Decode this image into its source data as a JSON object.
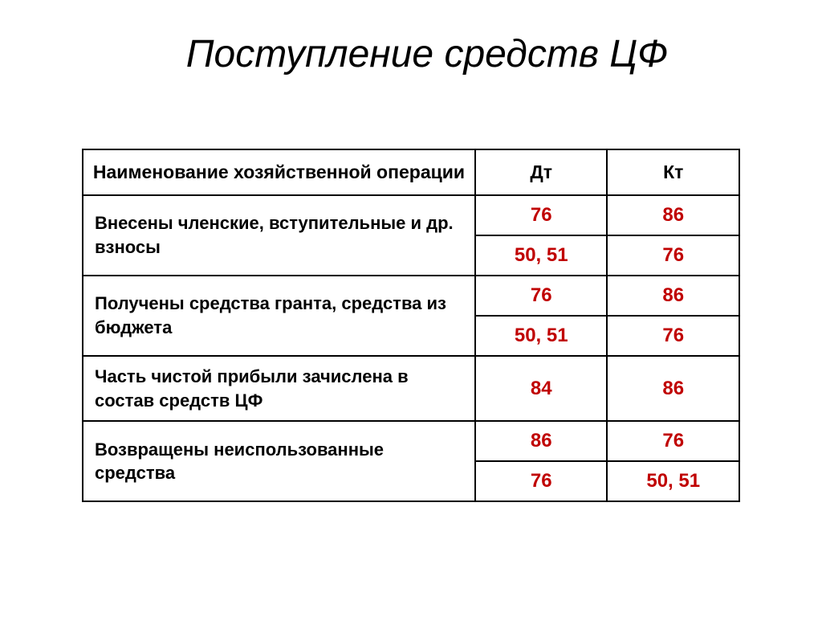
{
  "title": "Поступление средств ЦФ",
  "table": {
    "headers": {
      "operation": "Наименование хозяйственной операции",
      "dt": "Дт",
      "kt": "Кт"
    },
    "rows": [
      {
        "operation": "Внесены членские, вступительные  и др. взносы",
        "entries": [
          {
            "dt": "76",
            "kt": "86"
          },
          {
            "dt": "50, 51",
            "kt": "76"
          }
        ]
      },
      {
        "operation": "Получены средства гранта, средства из бюджета",
        "entries": [
          {
            "dt": "76",
            "kt": "86"
          },
          {
            "dt": "50, 51",
            "kt": "76"
          }
        ]
      },
      {
        "operation": "Часть чистой прибыли зачислена в состав средств ЦФ",
        "entries": [
          {
            "dt": "84",
            "kt": "86"
          }
        ]
      },
      {
        "operation": "Возвращены неиспользованные средства",
        "entries": [
          {
            "dt": "86",
            "kt": "76"
          },
          {
            "dt": "76",
            "kt": "50, 51"
          }
        ]
      }
    ]
  },
  "colors": {
    "background": "#ffffff",
    "text": "#000000",
    "accent": "#c00000",
    "border": "#000000"
  },
  "typography": {
    "title_fontsize": 48,
    "title_style": "italic",
    "header_fontsize": 23,
    "cell_fontsize": 22,
    "value_fontsize": 24,
    "font_family": "Arial"
  }
}
